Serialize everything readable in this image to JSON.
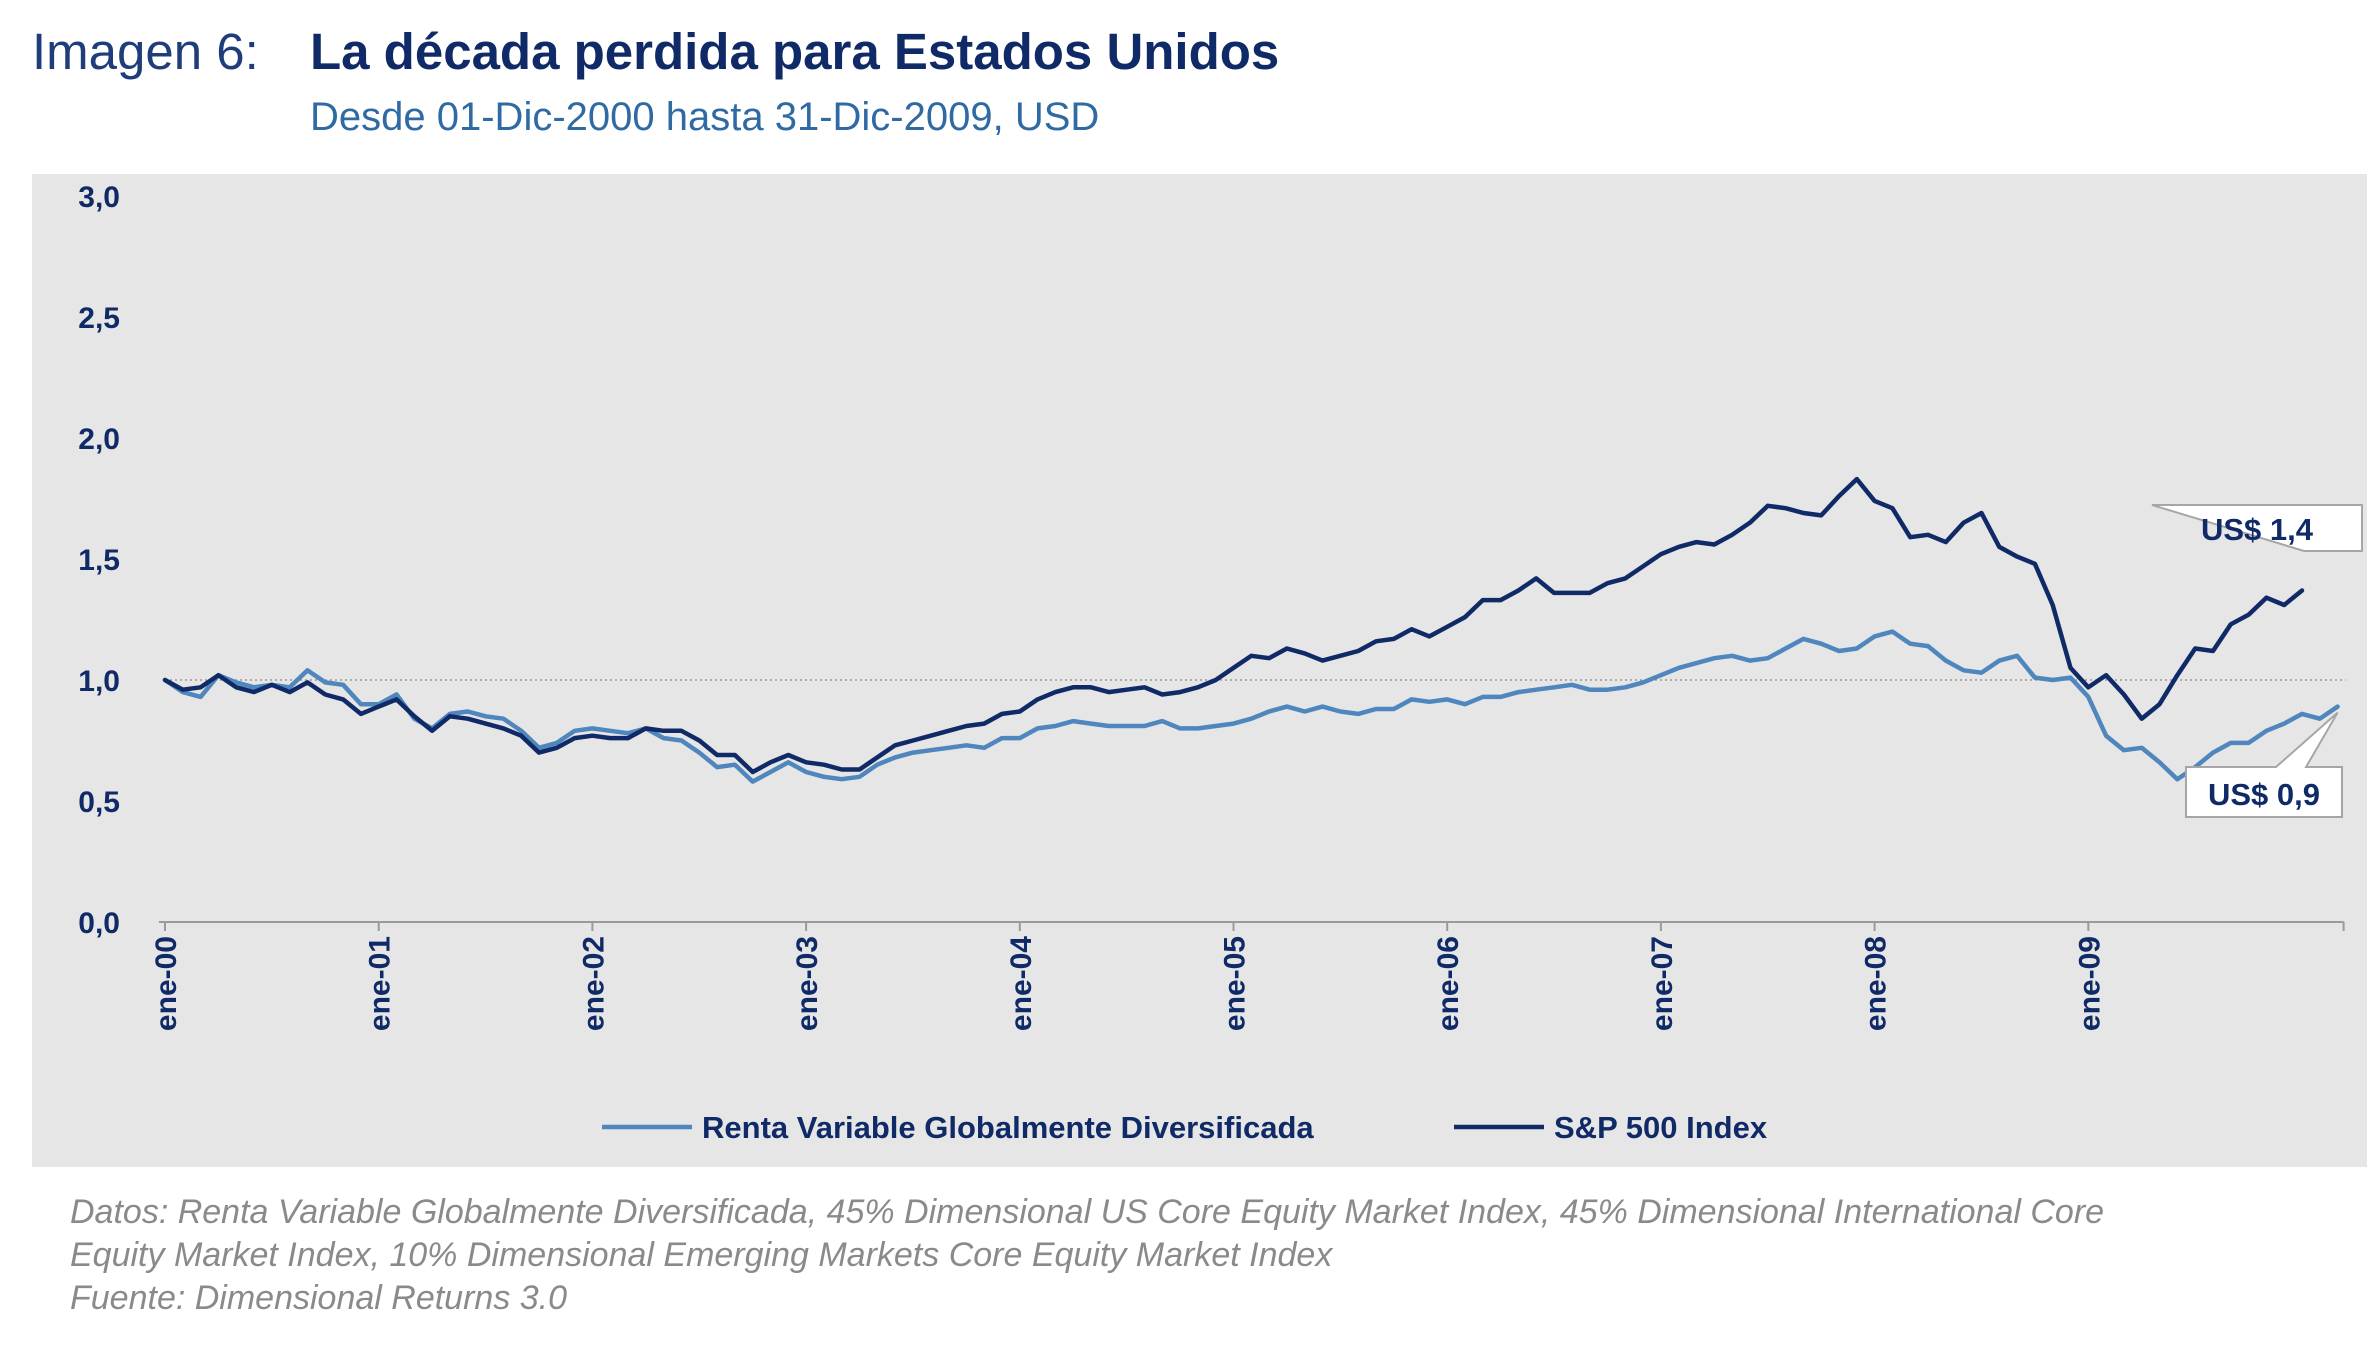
{
  "header": {
    "label": "Imagen 6:",
    "title": "La década perdida para Estados Unidos",
    "subtitle": "Desde 01-Dic-2000 hasta 31-Dic-2009, USD"
  },
  "chart_data": {
    "type": "line",
    "x_ticks": [
      "ene-00",
      "ene-01",
      "ene-02",
      "ene-03",
      "ene-04",
      "ene-05",
      "ene-06",
      "ene-07",
      "ene-08",
      "ene-09"
    ],
    "y_ticks": [
      "0,0",
      "0,5",
      "1,0",
      "1,5",
      "2,0",
      "2,5",
      "3,0"
    ],
    "ylim": [
      0,
      3
    ],
    "xlim": [
      0,
      120
    ],
    "reference_line": 1.0,
    "grid": false,
    "legend_position": "bottom",
    "series": [
      {
        "name": "Renta Variable Globalmente Diversificada",
        "color": "#4f86bd",
        "values": [
          1.0,
          0.95,
          0.93,
          1.02,
          0.99,
          0.97,
          0.98,
          0.97,
          1.04,
          0.99,
          0.98,
          0.9,
          0.9,
          0.94,
          0.84,
          0.8,
          0.86,
          0.87,
          0.85,
          0.84,
          0.79,
          0.72,
          0.74,
          0.79,
          0.8,
          0.79,
          0.78,
          0.8,
          0.76,
          0.75,
          0.7,
          0.64,
          0.65,
          0.58,
          0.62,
          0.66,
          0.62,
          0.6,
          0.59,
          0.6,
          0.65,
          0.68,
          0.7,
          0.71,
          0.72,
          0.73,
          0.72,
          0.76,
          0.76,
          0.8,
          0.81,
          0.83,
          0.82,
          0.81,
          0.81,
          0.81,
          0.83,
          0.8,
          0.8,
          0.81,
          0.82,
          0.84,
          0.87,
          0.89,
          0.87,
          0.89,
          0.87,
          0.86,
          0.88,
          0.88,
          0.92,
          0.91,
          0.92,
          0.9,
          0.93,
          0.93,
          0.95,
          0.96,
          0.97,
          0.98,
          0.96,
          0.96,
          0.97,
          0.99,
          1.02,
          1.05,
          1.07,
          1.09,
          1.1,
          1.08,
          1.09,
          1.13,
          1.17,
          1.15,
          1.12,
          1.13,
          1.18,
          1.2,
          1.15,
          1.14,
          1.08,
          1.04,
          1.03,
          1.08,
          1.1,
          1.01,
          1.0,
          1.01,
          0.93,
          0.77,
          0.71,
          0.72,
          0.66,
          0.59,
          0.64,
          0.7,
          0.74,
          0.74,
          0.79,
          0.82,
          0.86,
          0.84,
          0.89
        ]
      },
      {
        "name": "S&P 500 Index",
        "color": "#0f2a66",
        "values": [
          1.0,
          0.96,
          0.97,
          1.02,
          0.97,
          0.95,
          0.98,
          0.95,
          0.99,
          0.94,
          0.92,
          0.86,
          0.89,
          0.92,
          0.85,
          0.79,
          0.85,
          0.84,
          0.82,
          0.8,
          0.77,
          0.7,
          0.72,
          0.76,
          0.77,
          0.76,
          0.76,
          0.8,
          0.79,
          0.79,
          0.75,
          0.69,
          0.69,
          0.62,
          0.66,
          0.69,
          0.66,
          0.65,
          0.63,
          0.63,
          0.68,
          0.73,
          0.75,
          0.77,
          0.79,
          0.81,
          0.82,
          0.86,
          0.87,
          0.92,
          0.95,
          0.97,
          0.97,
          0.95,
          0.96,
          0.97,
          0.94,
          0.95,
          0.97,
          1.0,
          1.05,
          1.1,
          1.09,
          1.13,
          1.11,
          1.08,
          1.1,
          1.12,
          1.16,
          1.17,
          1.21,
          1.18,
          1.22,
          1.26,
          1.33,
          1.33,
          1.37,
          1.42,
          1.36,
          1.36,
          1.36,
          1.4,
          1.42,
          1.47,
          1.52,
          1.55,
          1.57,
          1.56,
          1.6,
          1.65,
          1.72,
          1.71,
          1.69,
          1.68,
          1.76,
          1.83,
          1.74,
          1.71,
          1.59,
          1.6,
          1.57,
          1.65,
          1.69,
          1.55,
          1.51,
          1.48,
          1.31,
          1.05,
          0.97,
          1.02,
          0.94,
          0.84,
          0.9,
          1.02,
          1.13,
          1.12,
          1.23,
          1.27,
          1.34,
          1.31,
          1.37
        ]
      }
    ],
    "annotations": [
      {
        "text": "US$ 1,4",
        "series": "S&P 500 Index"
      },
      {
        "text": "US$ 0,9",
        "series": "Renta Variable Globalmente Diversificada"
      }
    ]
  },
  "footer": {
    "line1": "Datos: Renta Variable Globalmente Diversificada, 45% Dimensional US Core Equity Market Index, 45% Dimensional International Core",
    "line2": "Equity Market Index, 10% Dimensional Emerging Markets Core Equity Market Index",
    "line3": "Fuente: Dimensional Returns 3.0"
  }
}
